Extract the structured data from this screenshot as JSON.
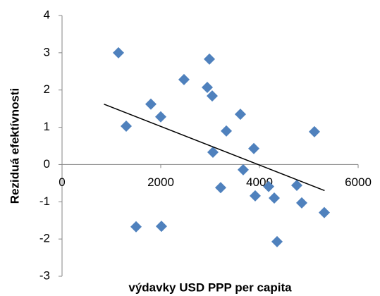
{
  "chart_data": {
    "type": "scatter",
    "x_label": "výdavky USD PPP per capita",
    "y_label": "Reziduá efektívnosti",
    "color": "#4f81bd",
    "x": [
      1143,
      1300,
      1800,
      2000,
      1500,
      2014,
      2471,
      2986,
      2943,
      3043,
      3057,
      3214,
      3329,
      3614,
      3671,
      3886,
      3914,
      4186,
      4300,
      4357,
      4757,
      4857,
      5114,
      5314
    ],
    "values": [
      3.0,
      1.03,
      1.62,
      1.28,
      -1.67,
      -1.66,
      2.28,
      2.83,
      2.07,
      1.84,
      0.33,
      -0.62,
      0.9,
      1.35,
      -0.14,
      0.43,
      -0.84,
      -0.59,
      -0.9,
      -2.07,
      -0.56,
      -1.03,
      0.88,
      -1.29
    ],
    "trendline": {
      "x": [
        850,
        5320
      ],
      "y": [
        1.62,
        -0.7
      ]
    },
    "xlim": [
      0,
      6000
    ],
    "xticks": [
      0,
      2000,
      4000,
      6000
    ],
    "ylim": [
      -3,
      4
    ],
    "yticks": [
      -3,
      -2,
      -1,
      0,
      1,
      2,
      3,
      4
    ],
    "grid": false
  }
}
